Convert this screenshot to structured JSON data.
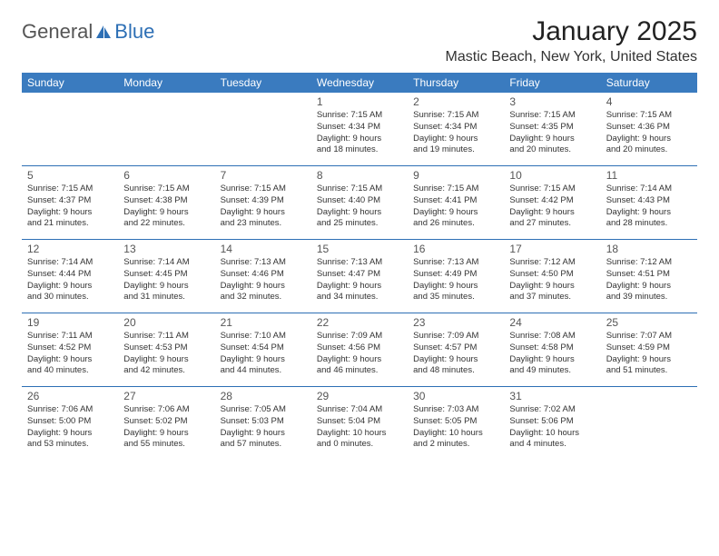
{
  "logo": {
    "part1": "General",
    "part2": "Blue"
  },
  "title": "January 2025",
  "location": "Mastic Beach, New York, United States",
  "colors": {
    "header_bg": "#3a7bbf",
    "header_text": "#ffffff",
    "divider": "#2d6fb5",
    "text": "#333333",
    "logo_gray": "#555555",
    "logo_blue": "#2d6fb5",
    "background": "#ffffff"
  },
  "calendar": {
    "type": "table",
    "day_labels": [
      "Sunday",
      "Monday",
      "Tuesday",
      "Wednesday",
      "Thursday",
      "Friday",
      "Saturday"
    ],
    "weeks": [
      [
        {
          "num": "",
          "lines": [
            "",
            "",
            "",
            ""
          ]
        },
        {
          "num": "",
          "lines": [
            "",
            "",
            "",
            ""
          ]
        },
        {
          "num": "",
          "lines": [
            "",
            "",
            "",
            ""
          ]
        },
        {
          "num": "1",
          "lines": [
            "Sunrise: 7:15 AM",
            "Sunset: 4:34 PM",
            "Daylight: 9 hours",
            "and 18 minutes."
          ]
        },
        {
          "num": "2",
          "lines": [
            "Sunrise: 7:15 AM",
            "Sunset: 4:34 PM",
            "Daylight: 9 hours",
            "and 19 minutes."
          ]
        },
        {
          "num": "3",
          "lines": [
            "Sunrise: 7:15 AM",
            "Sunset: 4:35 PM",
            "Daylight: 9 hours",
            "and 20 minutes."
          ]
        },
        {
          "num": "4",
          "lines": [
            "Sunrise: 7:15 AM",
            "Sunset: 4:36 PM",
            "Daylight: 9 hours",
            "and 20 minutes."
          ]
        }
      ],
      [
        {
          "num": "5",
          "lines": [
            "Sunrise: 7:15 AM",
            "Sunset: 4:37 PM",
            "Daylight: 9 hours",
            "and 21 minutes."
          ]
        },
        {
          "num": "6",
          "lines": [
            "Sunrise: 7:15 AM",
            "Sunset: 4:38 PM",
            "Daylight: 9 hours",
            "and 22 minutes."
          ]
        },
        {
          "num": "7",
          "lines": [
            "Sunrise: 7:15 AM",
            "Sunset: 4:39 PM",
            "Daylight: 9 hours",
            "and 23 minutes."
          ]
        },
        {
          "num": "8",
          "lines": [
            "Sunrise: 7:15 AM",
            "Sunset: 4:40 PM",
            "Daylight: 9 hours",
            "and 25 minutes."
          ]
        },
        {
          "num": "9",
          "lines": [
            "Sunrise: 7:15 AM",
            "Sunset: 4:41 PM",
            "Daylight: 9 hours",
            "and 26 minutes."
          ]
        },
        {
          "num": "10",
          "lines": [
            "Sunrise: 7:15 AM",
            "Sunset: 4:42 PM",
            "Daylight: 9 hours",
            "and 27 minutes."
          ]
        },
        {
          "num": "11",
          "lines": [
            "Sunrise: 7:14 AM",
            "Sunset: 4:43 PM",
            "Daylight: 9 hours",
            "and 28 minutes."
          ]
        }
      ],
      [
        {
          "num": "12",
          "lines": [
            "Sunrise: 7:14 AM",
            "Sunset: 4:44 PM",
            "Daylight: 9 hours",
            "and 30 minutes."
          ]
        },
        {
          "num": "13",
          "lines": [
            "Sunrise: 7:14 AM",
            "Sunset: 4:45 PM",
            "Daylight: 9 hours",
            "and 31 minutes."
          ]
        },
        {
          "num": "14",
          "lines": [
            "Sunrise: 7:13 AM",
            "Sunset: 4:46 PM",
            "Daylight: 9 hours",
            "and 32 minutes."
          ]
        },
        {
          "num": "15",
          "lines": [
            "Sunrise: 7:13 AM",
            "Sunset: 4:47 PM",
            "Daylight: 9 hours",
            "and 34 minutes."
          ]
        },
        {
          "num": "16",
          "lines": [
            "Sunrise: 7:13 AM",
            "Sunset: 4:49 PM",
            "Daylight: 9 hours",
            "and 35 minutes."
          ]
        },
        {
          "num": "17",
          "lines": [
            "Sunrise: 7:12 AM",
            "Sunset: 4:50 PM",
            "Daylight: 9 hours",
            "and 37 minutes."
          ]
        },
        {
          "num": "18",
          "lines": [
            "Sunrise: 7:12 AM",
            "Sunset: 4:51 PM",
            "Daylight: 9 hours",
            "and 39 minutes."
          ]
        }
      ],
      [
        {
          "num": "19",
          "lines": [
            "Sunrise: 7:11 AM",
            "Sunset: 4:52 PM",
            "Daylight: 9 hours",
            "and 40 minutes."
          ]
        },
        {
          "num": "20",
          "lines": [
            "Sunrise: 7:11 AM",
            "Sunset: 4:53 PM",
            "Daylight: 9 hours",
            "and 42 minutes."
          ]
        },
        {
          "num": "21",
          "lines": [
            "Sunrise: 7:10 AM",
            "Sunset: 4:54 PM",
            "Daylight: 9 hours",
            "and 44 minutes."
          ]
        },
        {
          "num": "22",
          "lines": [
            "Sunrise: 7:09 AM",
            "Sunset: 4:56 PM",
            "Daylight: 9 hours",
            "and 46 minutes."
          ]
        },
        {
          "num": "23",
          "lines": [
            "Sunrise: 7:09 AM",
            "Sunset: 4:57 PM",
            "Daylight: 9 hours",
            "and 48 minutes."
          ]
        },
        {
          "num": "24",
          "lines": [
            "Sunrise: 7:08 AM",
            "Sunset: 4:58 PM",
            "Daylight: 9 hours",
            "and 49 minutes."
          ]
        },
        {
          "num": "25",
          "lines": [
            "Sunrise: 7:07 AM",
            "Sunset: 4:59 PM",
            "Daylight: 9 hours",
            "and 51 minutes."
          ]
        }
      ],
      [
        {
          "num": "26",
          "lines": [
            "Sunrise: 7:06 AM",
            "Sunset: 5:00 PM",
            "Daylight: 9 hours",
            "and 53 minutes."
          ]
        },
        {
          "num": "27",
          "lines": [
            "Sunrise: 7:06 AM",
            "Sunset: 5:02 PM",
            "Daylight: 9 hours",
            "and 55 minutes."
          ]
        },
        {
          "num": "28",
          "lines": [
            "Sunrise: 7:05 AM",
            "Sunset: 5:03 PM",
            "Daylight: 9 hours",
            "and 57 minutes."
          ]
        },
        {
          "num": "29",
          "lines": [
            "Sunrise: 7:04 AM",
            "Sunset: 5:04 PM",
            "Daylight: 10 hours",
            "and 0 minutes."
          ]
        },
        {
          "num": "30",
          "lines": [
            "Sunrise: 7:03 AM",
            "Sunset: 5:05 PM",
            "Daylight: 10 hours",
            "and 2 minutes."
          ]
        },
        {
          "num": "31",
          "lines": [
            "Sunrise: 7:02 AM",
            "Sunset: 5:06 PM",
            "Daylight: 10 hours",
            "and 4 minutes."
          ]
        },
        {
          "num": "",
          "lines": [
            "",
            "",
            "",
            ""
          ]
        }
      ]
    ]
  }
}
